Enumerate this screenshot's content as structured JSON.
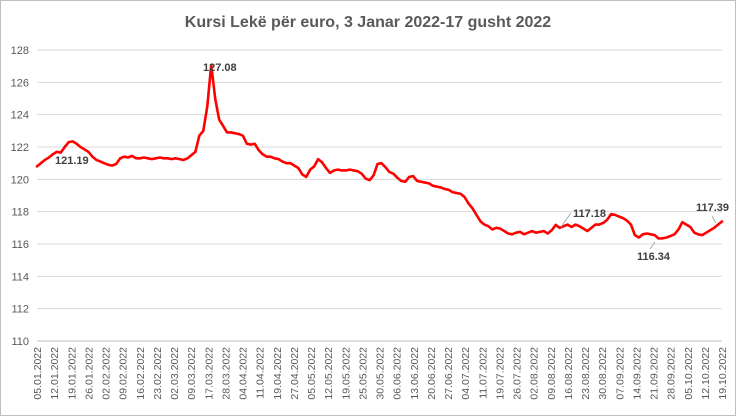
{
  "chart_data": {
    "type": "line",
    "title": "Kursi Lekë për euro, 3 Janar 2022-17 gusht 2022",
    "xlabel": "",
    "ylabel": "",
    "ylim": [
      110,
      128
    ],
    "yticks": [
      110,
      112,
      114,
      116,
      118,
      120,
      122,
      124,
      126,
      128
    ],
    "grid": true,
    "legend": "none",
    "line_color": "#ff0000",
    "x_tick_labels": [
      "05.01.2022",
      "12.01.2022",
      "19.01.2022",
      "26.01.2022",
      "02.02.2022",
      "09.02.2022",
      "16.02.2022",
      "23.02.2022",
      "02.03.2022",
      "09.03.2022",
      "17.03.2022",
      "28.03.2022",
      "04.04.2022",
      "11.04.2022",
      "19.04.2022",
      "27.04.2022",
      "05.05.2022",
      "12.05.2022",
      "19.05.2022",
      "25.05.2022",
      "30.05.2022",
      "06.06.2022",
      "13.06.2022",
      "20.06.2022",
      "27.06.2022",
      "04.07.2022",
      "11.07.2022",
      "19.07.2022",
      "26.07.2022",
      "02.08.2022",
      "09.08.2022",
      "16.08.2022",
      "23.08.2022",
      "30.08.2022",
      "07.09.2022",
      "14.09.2022",
      "21.09.2022",
      "28.09.2022",
      "05.10.2022",
      "12.10.2022",
      "19.10.2022"
    ],
    "series": [
      {
        "values": [
          120.8,
          121.0,
          121.2,
          121.35,
          121.55,
          121.7,
          121.65,
          122.0,
          122.3,
          122.35,
          122.2,
          122.0,
          121.85,
          121.7,
          121.4,
          121.2,
          121.1,
          121.0,
          120.9,
          120.85,
          120.95,
          121.3,
          121.4,
          121.35,
          121.45,
          121.3,
          121.3,
          121.35,
          121.3,
          121.25,
          121.3,
          121.35,
          121.3,
          121.3,
          121.25,
          121.3,
          121.25,
          121.2,
          121.3,
          121.5,
          121.7,
          122.7,
          123.0,
          124.5,
          127.08,
          125.0,
          123.7,
          123.3,
          122.9,
          122.9,
          122.85,
          122.8,
          122.7,
          122.2,
          122.15,
          122.2,
          121.8,
          121.55,
          121.4,
          121.4,
          121.3,
          121.25,
          121.1,
          121.0,
          121.0,
          120.85,
          120.7,
          120.3,
          120.15,
          120.6,
          120.8,
          121.25,
          121.05,
          120.7,
          120.4,
          120.55,
          120.6,
          120.55,
          120.55,
          120.6,
          120.55,
          120.5,
          120.35,
          120.05,
          119.95,
          120.25,
          120.95,
          121.0,
          120.75,
          120.45,
          120.35,
          120.1,
          119.9,
          119.85,
          120.15,
          120.2,
          119.9,
          119.85,
          119.8,
          119.75,
          119.6,
          119.55,
          119.5,
          119.4,
          119.35,
          119.2,
          119.15,
          119.1,
          118.9,
          118.5,
          118.2,
          117.8,
          117.4,
          117.2,
          117.1,
          116.9,
          117.0,
          116.95,
          116.8,
          116.65,
          116.6,
          116.7,
          116.75,
          116.6,
          116.7,
          116.8,
          116.7,
          116.75,
          116.8,
          116.65,
          116.85,
          117.18,
          117.0,
          117.1,
          117.2,
          117.05,
          117.2,
          117.1,
          116.95,
          116.8,
          117.0,
          117.2,
          117.2,
          117.3,
          117.5,
          117.85,
          117.8,
          117.7,
          117.6,
          117.45,
          117.2,
          116.55,
          116.4,
          116.6,
          116.65,
          116.6,
          116.55,
          116.34,
          116.35,
          116.4,
          116.5,
          116.6,
          116.9,
          117.35,
          117.2,
          117.05,
          116.7,
          116.6,
          116.55,
          116.7,
          116.85,
          117.0,
          117.2,
          117.39
        ]
      }
    ],
    "annotations": [
      {
        "text": "121.19"
      },
      {
        "text": "127.08"
      },
      {
        "text": "117.18"
      },
      {
        "text": "116.34"
      },
      {
        "text": "117.39"
      }
    ]
  }
}
